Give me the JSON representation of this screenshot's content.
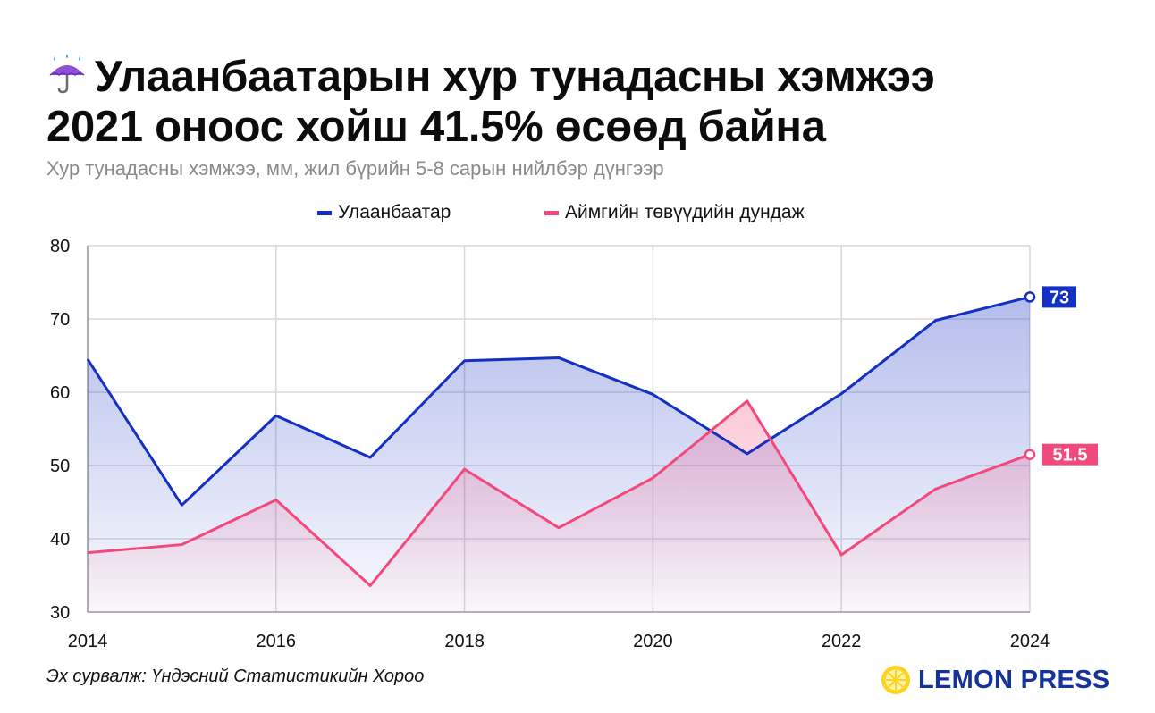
{
  "header": {
    "title_line1": "Улаанбаатарын хур тунадасны хэмжээ",
    "title_line2": "2021 оноос хойш 41.5% өсөөд байна",
    "title_icon": "umbrella-with-rain-icon",
    "subtitle": "Хур тунадасны хэмжээ, мм, жил бүрийн 5-8 сарын нийлбэр дүнгээр"
  },
  "colors": {
    "ulaanbaatar": "#1430c2",
    "aimag": "#f2497c",
    "grid": "#d9d9d9",
    "brand": "#14329a",
    "lemon": "#ffd21f"
  },
  "chart_data": {
    "type": "line",
    "title": "Улаанбаатарын хур тунадасны хэмжээ 2021 оноос хойш 41.5% өсөөд байна",
    "subtitle": "Хур тунадасны хэмжээ, мм, жил бүрийн 5-8 сарын нийлбэр дүнгээр",
    "x": [
      2014,
      2015,
      2016,
      2017,
      2018,
      2019,
      2020,
      2021,
      2022,
      2023,
      2024
    ],
    "x_ticks": [
      "2014",
      "2016",
      "2018",
      "2020",
      "2022",
      "2024"
    ],
    "y_ticks": [
      "30",
      "40",
      "50",
      "60",
      "70",
      "80"
    ],
    "ylim": [
      30,
      80
    ],
    "xlim": [
      2014,
      2024
    ],
    "grid": true,
    "legend_position": "top-center",
    "series": [
      {
        "name": "Улаанбаатар",
        "color": "#1430c2",
        "values": [
          64.5,
          44.6,
          56.8,
          51.1,
          64.3,
          64.7,
          59.7,
          51.6,
          59.8,
          69.8,
          73
        ],
        "end_label": "73"
      },
      {
        "name": "Аймгийн төвүүдийн дундаж",
        "color": "#f2497c",
        "values": [
          38.1,
          39.2,
          45.3,
          33.6,
          49.5,
          41.5,
          48.3,
          58.8,
          37.8,
          46.8,
          51.5
        ],
        "end_label": "51.5"
      }
    ]
  },
  "footer": {
    "source": "Эх сурвалж: Үндэсний Статистикийн Хороо",
    "brand": "LEMON PRESS",
    "brand_icon": "lemon-slice-icon"
  }
}
